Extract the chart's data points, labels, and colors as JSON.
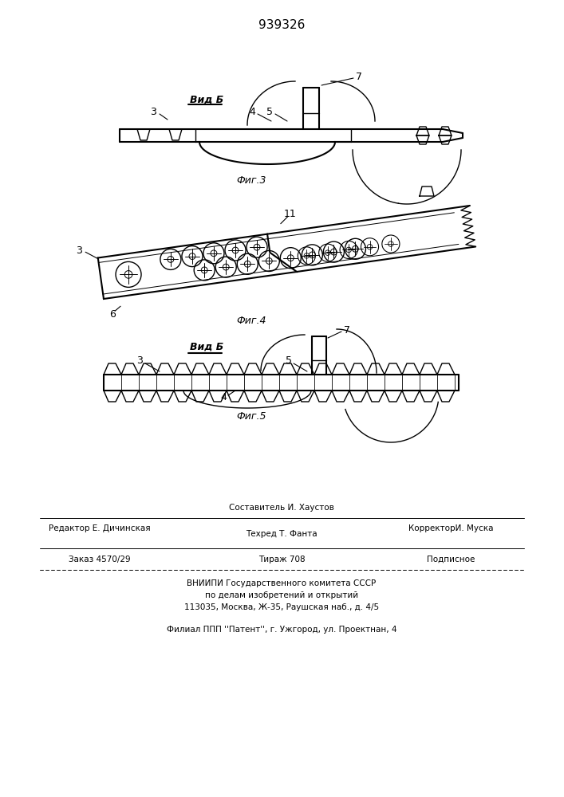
{
  "patent_number": "939326",
  "bg": "#ffffff",
  "lc": "#000000",
  "fig3_label": "Вид Б",
  "fig3_caption": "Фиг.3",
  "fig4_caption": "Фиг.4",
  "fig5_label": "Вид Б",
  "fig5_caption": "Фиг.5",
  "footer_line1": "Составитель И. Хаустов",
  "footer_line2_left": "Редактор Е. Дичинская",
  "footer_line2_mid": "Техред Т. Фанта",
  "footer_line2_right": "КорректорИ. Муска",
  "footer_line3_left": "Заказ 4570/29",
  "footer_line3_mid": "Тираж 708",
  "footer_line3_right": "Подписное",
  "footer_line4": "ВНИИПИ Государственного комитета СССР",
  "footer_line5": "по делам изобретений и открытий",
  "footer_line6": "113035, Москва, Ж-35, Раушская наб., д. 4/5",
  "footer_line7": "Филиал ППП ''Патент'', г. Ужгород, ул. Проектнан, 4"
}
